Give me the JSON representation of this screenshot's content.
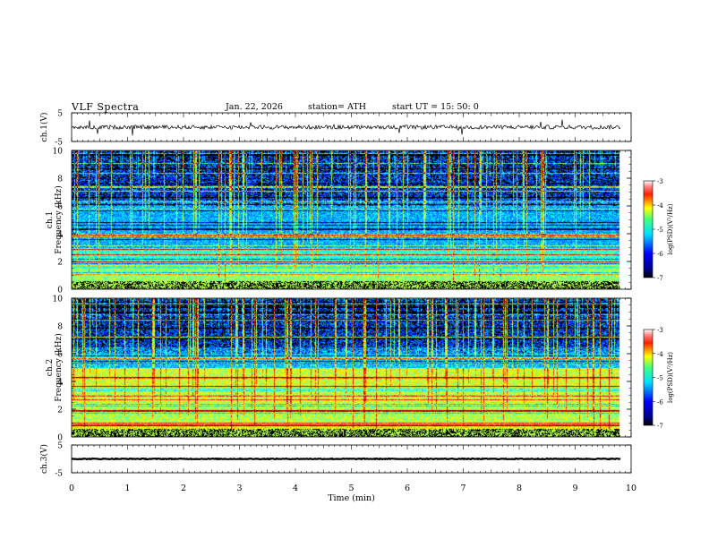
{
  "header": {
    "title": "VLF  Spectra",
    "date": "Jan. 22, 2026",
    "station": "station= ATH",
    "start": "start  UT  =   15: 50: 0"
  },
  "chart_data": [
    {
      "type": "line",
      "ylabel": "ch.1(V)",
      "ylim": [
        -5,
        5
      ],
      "yticks": [
        "5",
        "-5"
      ],
      "mean": 0,
      "noise_amplitude": 0.7
    },
    {
      "type": "heatmap",
      "ylabel_top": "ch.1",
      "ylabel": "Frequency  (kHz)",
      "ylim": [
        0,
        10
      ],
      "yticks": [
        "0",
        "2",
        "4",
        "6",
        "8",
        "10"
      ],
      "colorbar": {
        "label": "log(PSD)(V²/Hz)",
        "range": [
          -7,
          -3
        ],
        "ticks": [
          "-3",
          "-4",
          "-5",
          "-6",
          "-7"
        ]
      }
    },
    {
      "type": "heatmap",
      "ylabel_top": "ch.2",
      "ylabel": "Frequency  (kHz)",
      "ylim": [
        0,
        10
      ],
      "yticks": [
        "0",
        "2",
        "4",
        "6",
        "8",
        "10"
      ],
      "colorbar": {
        "label": "log(PSD)(V²/Hz)",
        "range": [
          -7,
          -3
        ],
        "ticks": [
          "-3",
          "-4",
          "-5",
          "-6",
          "-7"
        ]
      }
    },
    {
      "type": "line",
      "ylabel": "ch.3(V)",
      "ylim": [
        -5,
        5
      ],
      "yticks": [
        "5",
        "-5"
      ],
      "mean": 0,
      "noise_amplitude": 0.15
    }
  ],
  "xaxis": {
    "label": "Time  (min)",
    "range": [
      0,
      10
    ],
    "ticks": [
      "0",
      "1",
      "2",
      "3",
      "4",
      "5",
      "6",
      "7",
      "8",
      "9",
      "10"
    ],
    "data_end": 9.8
  }
}
